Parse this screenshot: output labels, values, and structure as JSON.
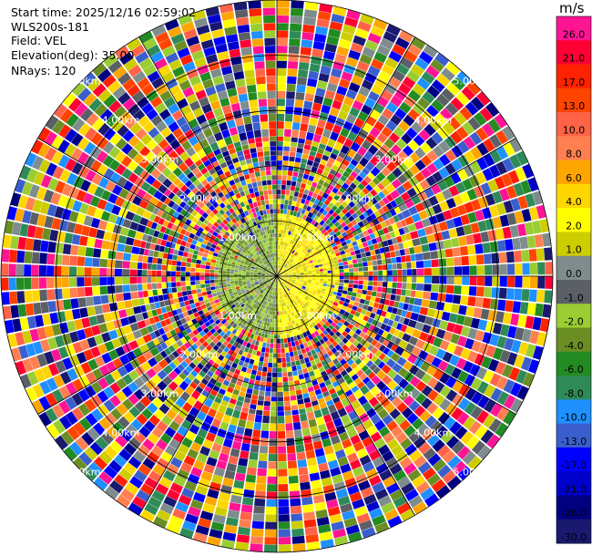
{
  "header": {
    "start_time": "Start time: 2025/12/16 02:59:02",
    "instrument": "WLS200s-181",
    "field": "Field: VEL",
    "elevation": "Elevation(deg): 35.00",
    "nrays": "NRays: 120"
  },
  "colorbar": {
    "unit": "m/s",
    "ticks": [
      "26.0",
      "21.0",
      "17.0",
      "13.0",
      "10.0",
      "8.0",
      "6.0",
      "4.0",
      "2.0",
      "1.0",
      "0.0",
      "-1.0",
      "-2.0",
      "-4.0",
      "-6.0",
      "-8.0",
      "-10.0",
      "-13.0",
      "-17.0",
      "-21.0",
      "-26.0",
      "-30.0"
    ],
    "colors": [
      "#ff1493",
      "#ff0033",
      "#ff2200",
      "#ff4400",
      "#ff6347",
      "#ff7f50",
      "#ffa500",
      "#ffd700",
      "#ffff00",
      "#cdcd00",
      "#7f8c8d",
      "#5b6066",
      "#9acd32",
      "#6b8e23",
      "#228b22",
      "#2e8b57",
      "#1e90ff",
      "#3a5fcd",
      "#0000ff",
      "#0000cd",
      "#000080",
      "#191970"
    ]
  },
  "chart_data": {
    "type": "ppi",
    "field": "VEL",
    "units": "m/s",
    "nrays": 120,
    "elevation_deg": 35.0,
    "range_rings_km": [
      1,
      2,
      3,
      4,
      5
    ],
    "range_ring_labels": [
      "1.00km",
      "2.00km",
      "3.00km",
      "4.00km",
      "5.00km"
    ],
    "azimuth_spokes_deg": [
      0,
      30,
      60,
      90,
      120,
      150,
      180,
      210,
      240,
      270,
      300,
      330
    ],
    "max_range_km": 5.0,
    "near_field": {
      "range_km": [
        0,
        1.1
      ],
      "west_half_color": "olive-green (~-1 to -4 m/s)",
      "east_half_color": "yellow (~2 to 4 m/s)"
    },
    "far_field": "noise (random values across colorbar range)"
  }
}
